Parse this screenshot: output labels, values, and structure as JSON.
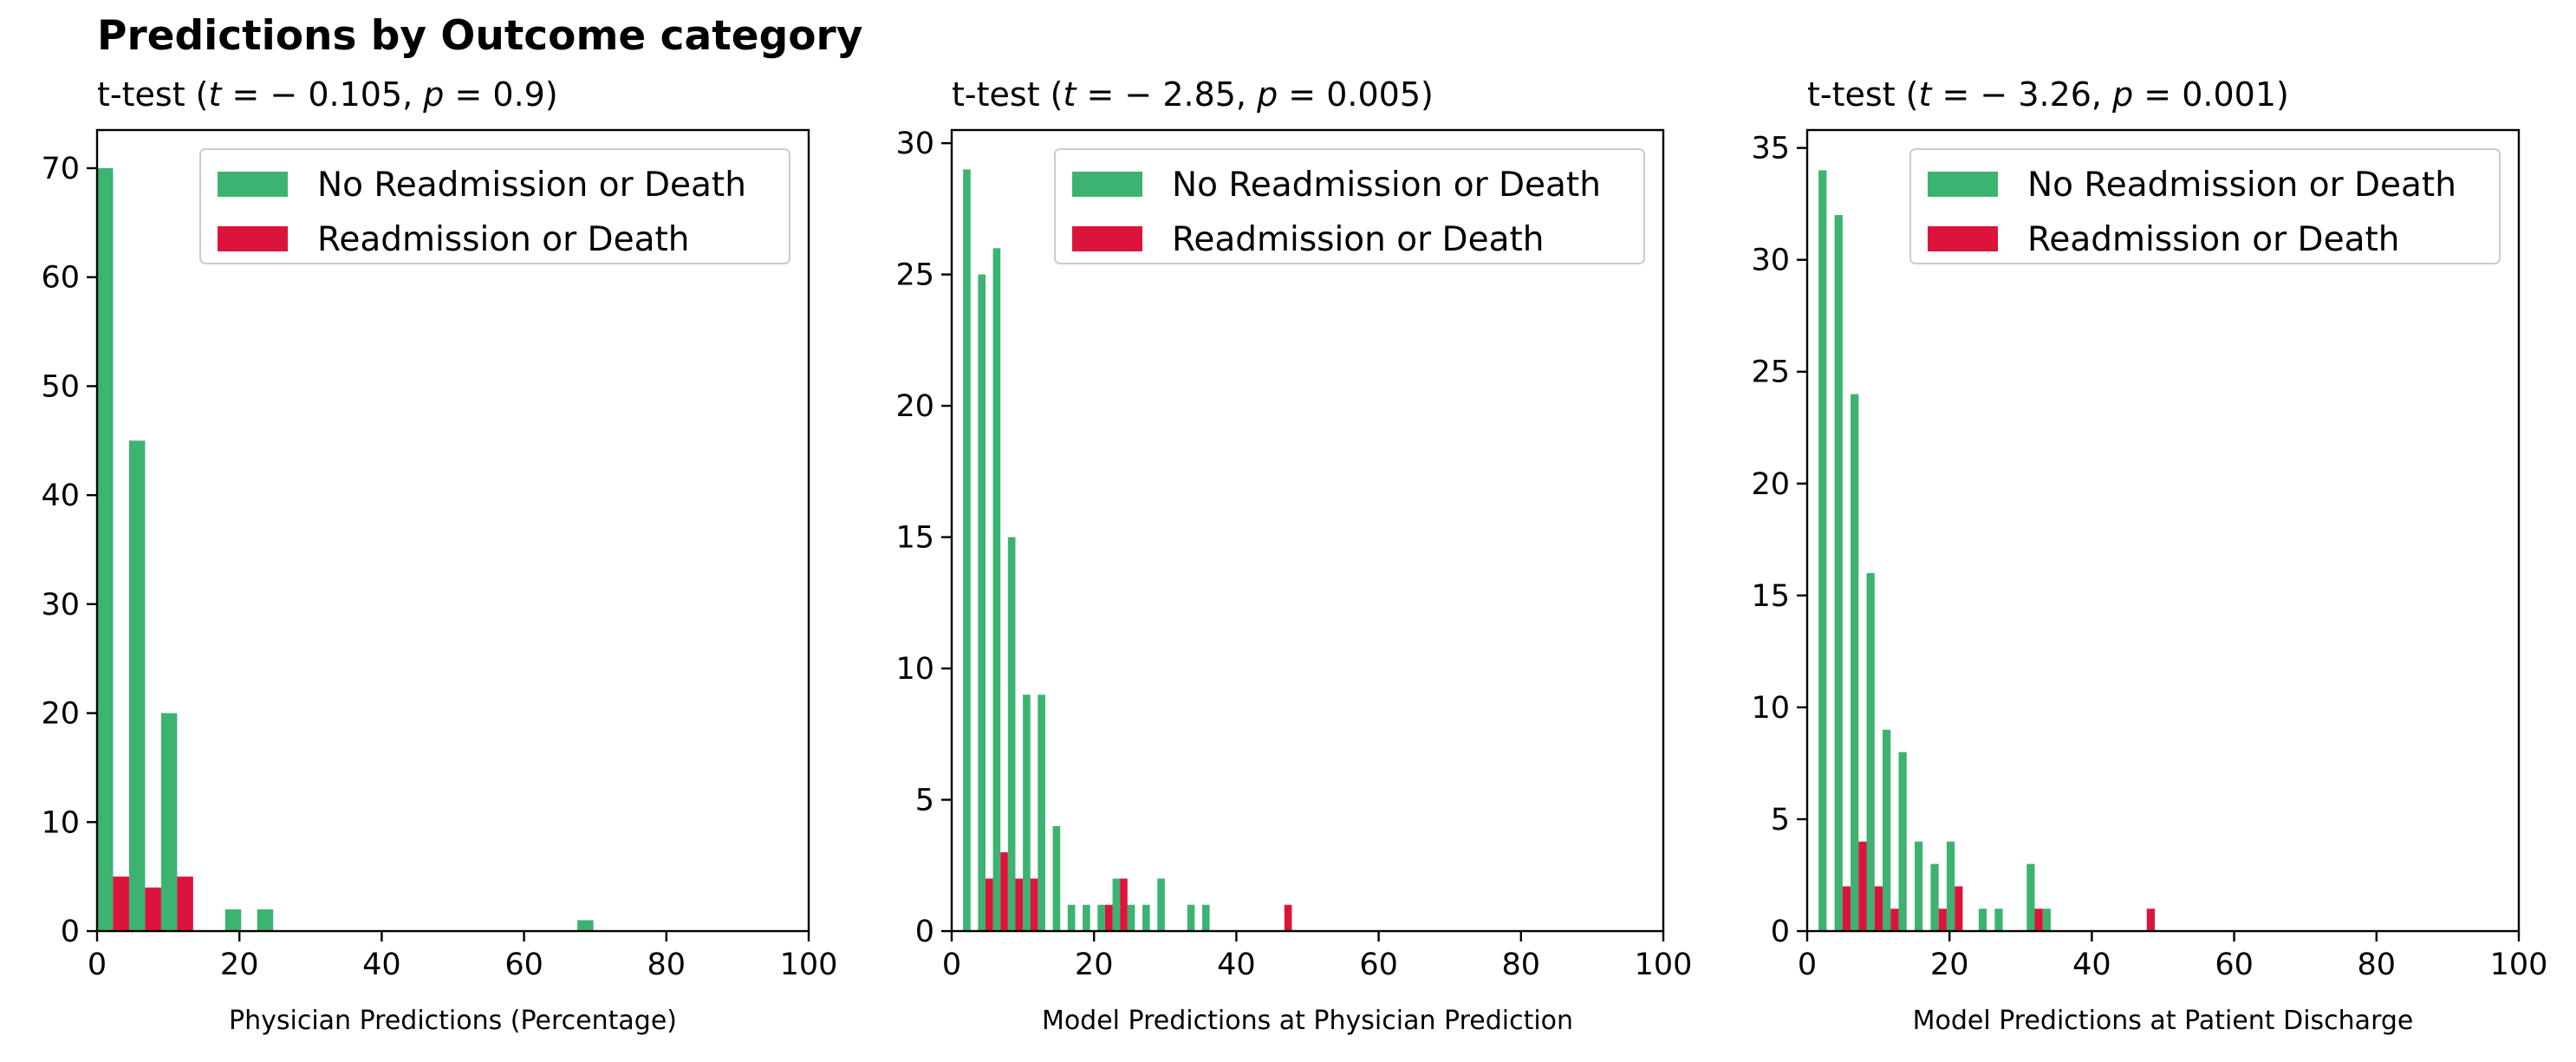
{
  "figure_title": "Predictions by Outcome category",
  "colors": {
    "no_readmission": "#3cb371",
    "readmission": "#dc143c"
  },
  "chart_data": [
    {
      "type": "bar",
      "subtitle_parts": [
        "t-test (",
        "t",
        " = − 0.105, ",
        "p",
        " = 0.9)"
      ],
      "xlabel": "Physician Predictions (Percentage)",
      "ylabel": "",
      "xlim": [
        0,
        100
      ],
      "ylim": [
        0,
        73.5
      ],
      "xticks": [
        0,
        20,
        40,
        60,
        80,
        100
      ],
      "yticks": [
        0,
        10,
        20,
        30,
        40,
        50,
        60,
        70
      ],
      "bin_width": 4.5,
      "legend_position": "top-right",
      "series": [
        {
          "name": "No Readmission or Death",
          "color": "#3cb371",
          "bins": [
            [
              0,
              70
            ],
            [
              4.5,
              45
            ],
            [
              9,
              20
            ],
            [
              13.5,
              0
            ],
            [
              18,
              2
            ],
            [
              22.5,
              2
            ],
            [
              67.5,
              1
            ]
          ]
        },
        {
          "name": "Readmission or Death",
          "color": "#dc143c",
          "bins": [
            [
              0,
              5
            ],
            [
              4.5,
              4
            ],
            [
              9,
              5
            ]
          ]
        }
      ]
    },
    {
      "type": "bar",
      "subtitle_parts": [
        "t-test (",
        "t",
        " = − 2.85, ",
        "p",
        " = 0.005)"
      ],
      "xlabel": "Model Predictions at Physician Prediction",
      "ylabel": "",
      "xlim": [
        0,
        100
      ],
      "ylim": [
        0,
        30.5
      ],
      "xticks": [
        0,
        20,
        40,
        60,
        80,
        100
      ],
      "yticks": [
        0,
        5,
        10,
        15,
        20,
        25,
        30
      ],
      "bin_width": 2.1,
      "legend_position": "top-right",
      "series": [
        {
          "name": "No Readmission or Death",
          "color": "#3cb371",
          "bins": [
            [
              1.6,
              29
            ],
            [
              3.7,
              25
            ],
            [
              5.8,
              26
            ],
            [
              7.9,
              15
            ],
            [
              10.0,
              9
            ],
            [
              12.1,
              9
            ],
            [
              14.2,
              4
            ],
            [
              16.3,
              1
            ],
            [
              18.4,
              1
            ],
            [
              20.5,
              1
            ],
            [
              22.6,
              2
            ],
            [
              24.7,
              1
            ],
            [
              26.8,
              1
            ],
            [
              28.9,
              2
            ],
            [
              33.1,
              1
            ],
            [
              35.2,
              1
            ]
          ]
        },
        {
          "name": "Readmission or Death",
          "color": "#dc143c",
          "bins": [
            [
              3.7,
              2
            ],
            [
              5.8,
              3
            ],
            [
              7.9,
              2
            ],
            [
              10.0,
              2
            ],
            [
              20.5,
              1
            ],
            [
              22.6,
              2
            ],
            [
              45.7,
              1
            ]
          ]
        }
      ]
    },
    {
      "type": "bar",
      "subtitle_parts": [
        "t-test (",
        "t",
        " = − 3.26, ",
        "p",
        " = 0.001)"
      ],
      "xlabel": "Model Predictions at Patient Discharge",
      "ylabel": "",
      "xlim": [
        0,
        100
      ],
      "ylim": [
        0,
        35.8
      ],
      "xticks": [
        0,
        20,
        40,
        60,
        80,
        100
      ],
      "yticks": [
        0,
        5,
        10,
        15,
        20,
        25,
        30,
        35
      ],
      "bin_width": 2.25,
      "legend_position": "top-right",
      "series": [
        {
          "name": "No Readmission or Death",
          "color": "#3cb371",
          "bins": [
            [
              1.6,
              34
            ],
            [
              3.85,
              32
            ],
            [
              6.1,
              24
            ],
            [
              8.35,
              16
            ],
            [
              10.6,
              9
            ],
            [
              12.85,
              8
            ],
            [
              15.1,
              4
            ],
            [
              17.35,
              3
            ],
            [
              19.6,
              4
            ],
            [
              24.1,
              1
            ],
            [
              26.35,
              1
            ],
            [
              30.85,
              3
            ],
            [
              33.1,
              1
            ]
          ]
        },
        {
          "name": "Readmission or Death",
          "color": "#dc143c",
          "bins": [
            [
              3.85,
              2
            ],
            [
              6.1,
              4
            ],
            [
              8.35,
              2
            ],
            [
              10.6,
              1
            ],
            [
              17.35,
              1
            ],
            [
              19.6,
              2
            ],
            [
              30.85,
              1
            ],
            [
              46.6,
              1
            ]
          ]
        }
      ]
    }
  ]
}
